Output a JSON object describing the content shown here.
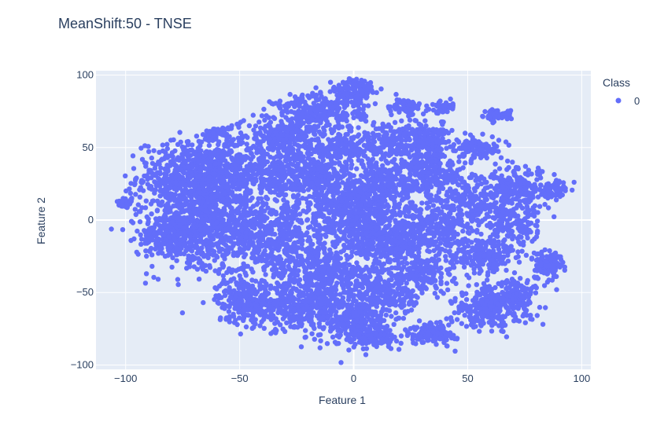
{
  "chart_data": {
    "type": "scatter",
    "title": "MeanShift:50 - TNSE",
    "xlabel": "Feature 1",
    "ylabel": "Feature 2",
    "xlim": [
      -113,
      104
    ],
    "ylim": [
      -103,
      103
    ],
    "x_ticks": [
      -100,
      -50,
      0,
      50,
      100
    ],
    "y_ticks": [
      -100,
      -50,
      0,
      50,
      100
    ],
    "x_tick_labels": [
      "−100",
      "−50",
      "0",
      "50",
      "100"
    ],
    "y_tick_labels": [
      "−100",
      "−50",
      "0",
      "50",
      "100"
    ],
    "grid": true,
    "legend": {
      "title": "Class",
      "placement": "top-right"
    },
    "plot_bg": "#e5ecf6",
    "series": [
      {
        "name": "0",
        "color": "#636efa",
        "clusters": [
          {
            "cx": -100,
            "cy": 12,
            "sx": 2,
            "sy": 2,
            "n": 40
          },
          {
            "cx": -82,
            "cy": -10,
            "sx": 6,
            "sy": 8,
            "n": 160
          },
          {
            "cx": -75,
            "cy": 30,
            "sx": 10,
            "sy": 12,
            "n": 420
          },
          {
            "cx": -70,
            "cy": -10,
            "sx": 10,
            "sy": 14,
            "n": 380
          },
          {
            "cx": -62,
            "cy": 15,
            "sx": 9,
            "sy": 14,
            "n": 360
          },
          {
            "cx": -55,
            "cy": 40,
            "sx": 8,
            "sy": 10,
            "n": 220
          },
          {
            "cx": -60,
            "cy": 60,
            "sx": 3,
            "sy": 2,
            "n": 40
          },
          {
            "cx": -48,
            "cy": -55,
            "sx": 6,
            "sy": 8,
            "n": 220
          },
          {
            "cx": -45,
            "cy": -10,
            "sx": 8,
            "sy": 14,
            "n": 300
          },
          {
            "cx": -35,
            "cy": 30,
            "sx": 10,
            "sy": 10,
            "n": 260
          },
          {
            "cx": -30,
            "cy": 58,
            "sx": 9,
            "sy": 6,
            "n": 260
          },
          {
            "cx": -28,
            "cy": -20,
            "sx": 10,
            "sy": 14,
            "n": 340
          },
          {
            "cx": -25,
            "cy": -60,
            "sx": 10,
            "sy": 8,
            "n": 320
          },
          {
            "cx": -15,
            "cy": 30,
            "sx": 8,
            "sy": 10,
            "n": 240
          },
          {
            "cx": -15,
            "cy": 75,
            "sx": 10,
            "sy": 6,
            "n": 240
          },
          {
            "cx": -10,
            "cy": -40,
            "sx": 8,
            "sy": 10,
            "n": 280
          },
          {
            "cx": 0,
            "cy": 88,
            "sx": 5,
            "sy": 5,
            "n": 140
          },
          {
            "cx": 0,
            "cy": 5,
            "sx": 10,
            "sy": 14,
            "n": 520
          },
          {
            "cx": -5,
            "cy": 50,
            "sx": 8,
            "sy": 6,
            "n": 180
          },
          {
            "cx": 0,
            "cy": -70,
            "sx": 8,
            "sy": 8,
            "n": 300
          },
          {
            "cx": 15,
            "cy": 55,
            "sx": 8,
            "sy": 6,
            "n": 160
          },
          {
            "cx": 15,
            "cy": 25,
            "sx": 8,
            "sy": 10,
            "n": 260
          },
          {
            "cx": 15,
            "cy": -15,
            "sx": 8,
            "sy": 10,
            "n": 280
          },
          {
            "cx": 15,
            "cy": -50,
            "sx": 8,
            "sy": 8,
            "n": 240
          },
          {
            "cx": 10,
            "cy": -82,
            "sx": 5,
            "sy": 3,
            "n": 90
          },
          {
            "cx": 22,
            "cy": 78,
            "sx": 4,
            "sy": 3,
            "n": 60
          },
          {
            "cx": 33,
            "cy": 55,
            "sx": 5,
            "sy": 7,
            "n": 200
          },
          {
            "cx": 35,
            "cy": 30,
            "sx": 7,
            "sy": 7,
            "n": 200
          },
          {
            "cx": 35,
            "cy": -5,
            "sx": 8,
            "sy": 10,
            "n": 260
          },
          {
            "cx": 32,
            "cy": -35,
            "sx": 6,
            "sy": 7,
            "n": 160
          },
          {
            "cx": 35,
            "cy": -78,
            "sx": 5,
            "sy": 4,
            "n": 140
          },
          {
            "cx": 40,
            "cy": 78,
            "sx": 3,
            "sy": 2,
            "n": 40
          },
          {
            "cx": 55,
            "cy": 50,
            "sx": 6,
            "sy": 4,
            "n": 110
          },
          {
            "cx": 55,
            "cy": 10,
            "sx": 8,
            "sy": 10,
            "n": 220
          },
          {
            "cx": 58,
            "cy": -25,
            "sx": 8,
            "sy": 6,
            "n": 200
          },
          {
            "cx": 60,
            "cy": -60,
            "sx": 9,
            "sy": 7,
            "n": 300
          },
          {
            "cx": 63,
            "cy": 72,
            "sx": 3,
            "sy": 2,
            "n": 60
          },
          {
            "cx": 72,
            "cy": 20,
            "sx": 8,
            "sy": 8,
            "n": 200
          },
          {
            "cx": 72,
            "cy": -5,
            "sx": 6,
            "sy": 6,
            "n": 110
          },
          {
            "cx": 70,
            "cy": -50,
            "sx": 5,
            "sy": 5,
            "n": 90
          },
          {
            "cx": 85,
            "cy": -30,
            "sx": 4,
            "sy": 5,
            "n": 110
          },
          {
            "cx": 88,
            "cy": 22,
            "sx": 3,
            "sy": 3,
            "n": 50
          }
        ]
      }
    ]
  }
}
